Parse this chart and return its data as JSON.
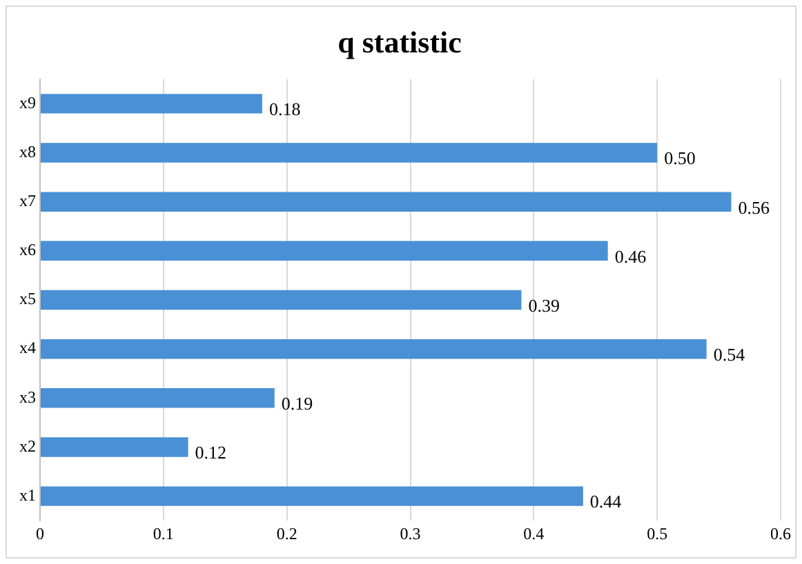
{
  "chart_data": {
    "type": "bar",
    "title": "q statistic",
    "orientation": "horizontal",
    "categories": [
      "x9",
      "x8",
      "x7",
      "x6",
      "x5",
      "x4",
      "x3",
      "x2",
      "x1"
    ],
    "values": [
      0.18,
      0.5,
      0.56,
      0.46,
      0.39,
      0.54,
      0.19,
      0.12,
      0.44
    ],
    "value_labels": [
      "0.18",
      "0.50",
      "0.56",
      "0.46",
      "0.39",
      "0.54",
      "0.19",
      "0.12",
      "0.44"
    ],
    "color": "#4a90d4",
    "xlim": [
      0,
      0.6
    ],
    "xticks": [
      0,
      0.1,
      0.2,
      0.3,
      0.4,
      0.5,
      0.6
    ],
    "grid": "x"
  }
}
